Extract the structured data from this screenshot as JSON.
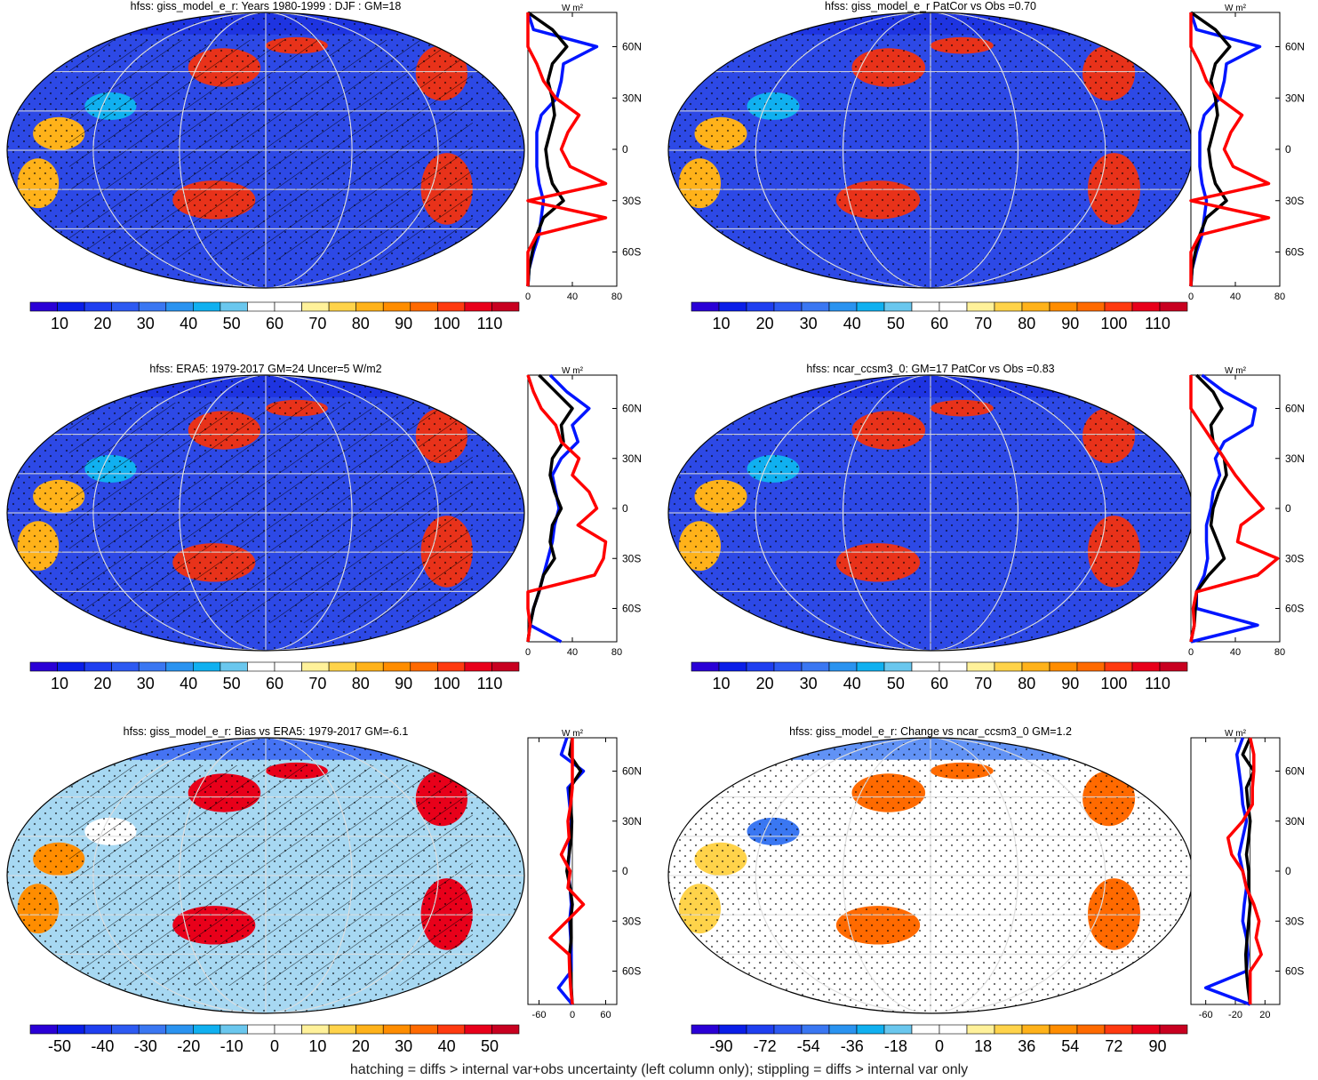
{
  "footer_note": "hatching = diffs > internal var+obs uncertainty (left column only); stippling = diffs > internal var only",
  "colors": {
    "abs_scale": [
      "#2a00d6",
      "#0a1ee8",
      "#1f3ff0",
      "#2d5af2",
      "#3a77f2",
      "#2a93f0",
      "#10b0f0",
      "#6ac7ee",
      "#ffffff",
      "#ffffff",
      "#fff19a",
      "#ffd34a",
      "#ffb21a",
      "#ff8d00",
      "#ff6a00",
      "#ff3a10",
      "#e8001a",
      "#c80020"
    ],
    "bias_scale": [
      "#2a00d6",
      "#0a1ee8",
      "#1f3ff0",
      "#2d5af2",
      "#3a77f2",
      "#2a93f0",
      "#10b0f0",
      "#6ac7ee",
      "#ffffff",
      "#ffffff",
      "#fff19a",
      "#ffd34a",
      "#ffb21a",
      "#ff8d00",
      "#ff6a00",
      "#ff3a10",
      "#e8001a",
      "#c80020"
    ],
    "line_model": "#0015ff",
    "line_obs": "#000000",
    "line_diff": "#ff0000",
    "map_ocean_abs": "#2d49e6",
    "map_ocean_bias": "#a7d8f2",
    "map_ocean_change": "#ffffff"
  },
  "chart_data": [
    {
      "type": "heatmap",
      "title": "hfss: giss_model_e_r: Years 1980-1999 : DJF : GM=18",
      "colorbar_ticks": [
        "10",
        "20",
        "30",
        "40",
        "50",
        "60",
        "70",
        "80",
        "90",
        "100",
        "110"
      ],
      "scale": "abs",
      "hatching": true,
      "stippling": true,
      "zonal_plot": {
        "units": "W m²",
        "y_ticks": [
          "60N",
          "30N",
          "0",
          "30S",
          "60S"
        ],
        "x_ticks": [
          "0",
          "40",
          "80"
        ],
        "xlim": [
          0,
          80
        ],
        "lat": [
          80,
          70,
          60,
          50,
          40,
          30,
          20,
          10,
          0,
          -10,
          -20,
          -30,
          -40,
          -50,
          -60,
          -70,
          -80
        ],
        "series": [
          {
            "values": [
              0,
              5,
              62,
              32,
              30,
              26,
              12,
              8,
              8,
              8,
              10,
              14,
              12,
              10,
              5,
              1,
              0
            ]
          },
          {
            "values": [
              0,
              22,
              35,
              22,
              18,
              22,
              24,
              20,
              16,
              18,
              22,
              32,
              14,
              8,
              4,
              1,
              0
            ]
          },
          {
            "values": [
              0,
              0,
              0,
              8,
              14,
              25,
              46,
              36,
              30,
              38,
              70,
              0,
              70,
              8,
              0,
              0,
              0
            ]
          }
        ]
      }
    },
    {
      "type": "heatmap",
      "title": "hfss: giss_model_e_r PatCor vs Obs =0.70",
      "colorbar_ticks": [
        "10",
        "20",
        "30",
        "40",
        "50",
        "60",
        "70",
        "80",
        "90",
        "100",
        "110"
      ],
      "scale": "abs",
      "hatching": false,
      "stippling": true,
      "zonal_plot": {
        "units": "W m²",
        "y_ticks": [
          "60N",
          "30N",
          "0",
          "30S",
          "60S"
        ],
        "x_ticks": [
          "0",
          "40",
          "80"
        ],
        "xlim": [
          0,
          80
        ],
        "lat": [
          80,
          70,
          60,
          50,
          40,
          30,
          20,
          10,
          0,
          -10,
          -20,
          -30,
          -40,
          -50,
          -60,
          -70,
          -80
        ],
        "series": [
          {
            "values": [
              0,
              5,
              62,
              32,
              30,
              26,
              12,
              8,
              8,
              8,
              10,
              14,
              12,
              10,
              5,
              1,
              0
            ]
          },
          {
            "values": [
              0,
              22,
              35,
              22,
              18,
              22,
              24,
              20,
              16,
              18,
              22,
              32,
              14,
              8,
              4,
              1,
              0
            ]
          },
          {
            "values": [
              0,
              0,
              0,
              8,
              14,
              25,
              46,
              36,
              30,
              38,
              70,
              0,
              70,
              8,
              0,
              0,
              0
            ]
          }
        ]
      }
    },
    {
      "type": "heatmap",
      "title": "hfss: ERA5: 1979-2017 GM=24 Uncer=5 W/m2",
      "colorbar_ticks": [
        "10",
        "20",
        "30",
        "40",
        "50",
        "60",
        "70",
        "80",
        "90",
        "100",
        "110"
      ],
      "scale": "abs",
      "hatching": true,
      "stippling": true,
      "zonal_plot": {
        "units": "W m²",
        "y_ticks": [
          "60N",
          "30N",
          "0",
          "30S",
          "60S"
        ],
        "x_ticks": [
          "0",
          "40",
          "80"
        ],
        "xlim": [
          0,
          80
        ],
        "lat": [
          80,
          70,
          60,
          50,
          40,
          30,
          20,
          10,
          0,
          -10,
          -20,
          -30,
          -40,
          -50,
          -60,
          -70,
          -80
        ],
        "series": [
          {
            "values": [
              20,
              35,
              55,
              40,
              45,
              30,
              22,
              25,
              28,
              24,
              22,
              18,
              14,
              10,
              5,
              2,
              30
            ]
          },
          {
            "values": [
              10,
              25,
              40,
              30,
              32,
              22,
              20,
              24,
              30,
              22,
              20,
              24,
              14,
              10,
              5,
              2,
              0
            ]
          },
          {
            "values": [
              0,
              5,
              12,
              25,
              30,
              46,
              40,
              55,
              62,
              45,
              70,
              68,
              60,
              0,
              0,
              2,
              0
            ]
          }
        ]
      }
    },
    {
      "type": "heatmap",
      "title": "hfss: ncar_ccsm3_0: GM=17 PatCor vs Obs =0.83",
      "colorbar_ticks": [
        "10",
        "20",
        "30",
        "40",
        "50",
        "60",
        "70",
        "80",
        "90",
        "100",
        "110"
      ],
      "scale": "abs",
      "hatching": false,
      "stippling": true,
      "zonal_plot": {
        "units": "W m²",
        "y_ticks": [
          "60N",
          "30N",
          "0",
          "30S",
          "60S"
        ],
        "x_ticks": [
          "0",
          "40",
          "80"
        ],
        "xlim": [
          0,
          80
        ],
        "lat": [
          80,
          70,
          60,
          50,
          40,
          30,
          20,
          10,
          0,
          -10,
          -20,
          -30,
          -40,
          -50,
          -60,
          -70,
          -80
        ],
        "series": [
          {
            "values": [
              10,
              30,
              58,
              55,
              30,
              22,
              26,
              20,
              18,
              14,
              14,
              15,
              12,
              5,
              5,
              60,
              0
            ]
          },
          {
            "values": [
              5,
              20,
              28,
              18,
              20,
              30,
              32,
              25,
              20,
              18,
              24,
              30,
              16,
              5,
              4,
              3,
              0
            ]
          },
          {
            "values": [
              0,
              0,
              0,
              10,
              20,
              30,
              40,
              52,
              65,
              45,
              42,
              78,
              60,
              5,
              2,
              3,
              0
            ]
          }
        ]
      }
    },
    {
      "type": "heatmap",
      "title": "hfss: giss_model_e_r: Bias vs ERA5: 1979-2017 GM=-6.1",
      "colorbar_ticks": [
        "-50",
        "-40",
        "-30",
        "-20",
        "-10",
        "0",
        "10",
        "20",
        "30",
        "40",
        "50"
      ],
      "scale": "bias",
      "hatching": true,
      "stippling": true,
      "zonal_plot": {
        "units": "W m²",
        "y_ticks": [
          "60N",
          "30N",
          "0",
          "30S",
          "60S"
        ],
        "x_ticks": [
          "-60",
          "0",
          "60"
        ],
        "xlim": [
          -80,
          80
        ],
        "lat": [
          80,
          70,
          60,
          50,
          40,
          30,
          20,
          10,
          0,
          -10,
          -20,
          -30,
          -40,
          -50,
          -60,
          -70,
          -80
        ],
        "series": [
          {
            "values": [
              -10,
              -20,
              20,
              -8,
              -5,
              -2,
              -5,
              -6,
              -8,
              -4,
              -2,
              -5,
              -3,
              -2,
              -2,
              -25,
              0
            ]
          },
          {
            "values": [
              0,
              -5,
              15,
              -4,
              -3,
              -1,
              -2,
              -6,
              -10,
              -4,
              0,
              -3,
              -2,
              -5,
              -3,
              -2,
              0
            ]
          },
          {
            "values": [
              0,
              0,
              0,
              0,
              -3,
              -8,
              -6,
              -20,
              -4,
              -8,
              20,
              -10,
              -40,
              -6,
              -5,
              -3,
              0
            ]
          }
        ]
      }
    },
    {
      "type": "heatmap",
      "title": "hfss: giss_model_e_r: Change vs ncar_ccsm3_0 GM=1.2",
      "colorbar_ticks": [
        "-90",
        "-72",
        "-54",
        "-36",
        "-18",
        "0",
        "18",
        "36",
        "54",
        "72",
        "90"
      ],
      "scale": "change",
      "hatching": false,
      "stippling": true,
      "zonal_plot": {
        "units": "W m²",
        "y_ticks": [
          "60N",
          "30N",
          "0",
          "30S",
          "60S"
        ],
        "x_ticks": [
          "-60",
          "-20",
          "20"
        ],
        "xlim": [
          -80,
          40
        ],
        "lat": [
          80,
          70,
          60,
          50,
          40,
          30,
          20,
          10,
          0,
          -10,
          -20,
          -30,
          -40,
          -50,
          -60,
          -70,
          -80
        ],
        "series": [
          {
            "values": [
              -10,
              -18,
              -15,
              -12,
              -10,
              -5,
              -10,
              -15,
              -10,
              -5,
              -8,
              -10,
              -5,
              -3,
              -5,
              -60,
              0
            ]
          },
          {
            "values": [
              0,
              -10,
              5,
              -5,
              -3,
              0,
              -2,
              -5,
              -2,
              -2,
              0,
              -2,
              -4,
              -6,
              -5,
              -3,
              0
            ]
          },
          {
            "values": [
              0,
              5,
              5,
              3,
              3,
              -10,
              -30,
              -25,
              -10,
              -5,
              5,
              12,
              8,
              15,
              0,
              0,
              0
            ]
          }
        ]
      }
    }
  ]
}
